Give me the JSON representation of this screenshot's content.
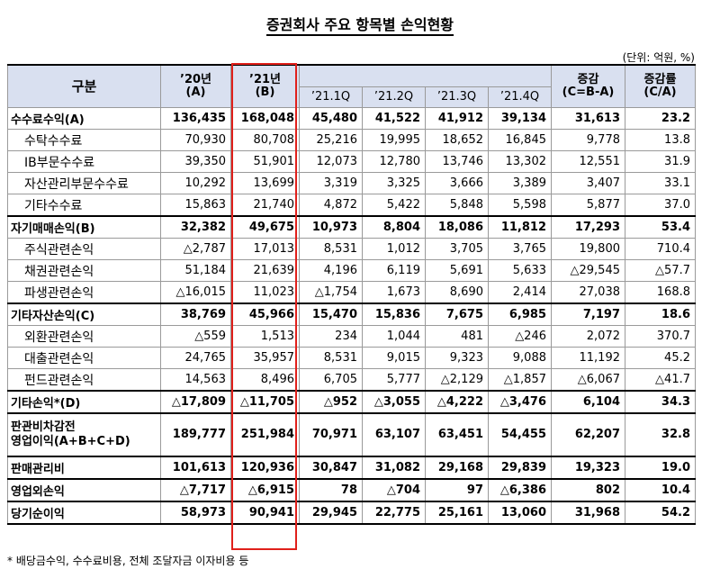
{
  "title": "증권회사 주요 항목별 손익현황",
  "unit": "(단위: 억원, %)",
  "header": {
    "category": "구분",
    "y20": [
      "’20년",
      "(A)"
    ],
    "y21": [
      "’21년",
      "(B)"
    ],
    "q1": "’21.1Q",
    "q2": "’21.2Q",
    "q3": "’21.3Q",
    "q4": "’21.4Q",
    "diff": [
      "증감",
      "(C=B-A)"
    ],
    "rate": [
      "증감률",
      "(C/A)"
    ]
  },
  "rows": [
    {
      "label": "수수료수익(A)",
      "y20": "136,435",
      "y21": "168,048",
      "q1": "45,480",
      "q2": "41,522",
      "q3": "41,912",
      "q4": "39,134",
      "diff": "31,613",
      "rate": "23.2"
    },
    {
      "label": "수탁수수료",
      "y20": "70,930",
      "y21": "80,708",
      "q1": "25,216",
      "q2": "19,995",
      "q3": "18,652",
      "q4": "16,845",
      "diff": "9,778",
      "rate": "13.8"
    },
    {
      "label": "IB부문수수료",
      "y20": "39,350",
      "y21": "51,901",
      "q1": "12,073",
      "q2": "12,780",
      "q3": "13,746",
      "q4": "13,302",
      "diff": "12,551",
      "rate": "31.9"
    },
    {
      "label": "자산관리부문수수료",
      "y20": "10,292",
      "y21": "13,699",
      "q1": "3,319",
      "q2": "3,325",
      "q3": "3,666",
      "q4": "3,389",
      "diff": "3,407",
      "rate": "33.1"
    },
    {
      "label": "기타수수료",
      "y20": "15,863",
      "y21": "21,740",
      "q1": "4,872",
      "q2": "5,422",
      "q3": "5,848",
      "q4": "5,598",
      "diff": "5,877",
      "rate": "37.0"
    },
    {
      "label": "자기매매손익(B)",
      "y20": "32,382",
      "y21": "49,675",
      "q1": "10,973",
      "q2": "8,804",
      "q3": "18,086",
      "q4": "11,812",
      "diff": "17,293",
      "rate": "53.4"
    },
    {
      "label": "주식관련손익",
      "y20": "△2,787",
      "y21": "17,013",
      "q1": "8,531",
      "q2": "1,012",
      "q3": "3,705",
      "q4": "3,765",
      "diff": "19,800",
      "rate": "710.4"
    },
    {
      "label": "채권관련손익",
      "y20": "51,184",
      "y21": "21,639",
      "q1": "4,196",
      "q2": "6,119",
      "q3": "5,691",
      "q4": "5,633",
      "diff": "△29,545",
      "rate": "△57.7"
    },
    {
      "label": "파생관련손익",
      "y20": "△16,015",
      "y21": "11,023",
      "q1": "△1,754",
      "q2": "1,673",
      "q3": "8,690",
      "q4": "2,414",
      "diff": "27,038",
      "rate": "168.8"
    },
    {
      "label": "기타자산손익(C)",
      "y20": "38,769",
      "y21": "45,966",
      "q1": "15,470",
      "q2": "15,836",
      "q3": "7,675",
      "q4": "6,985",
      "diff": "7,197",
      "rate": "18.6"
    },
    {
      "label": "외환관련손익",
      "y20": "△559",
      "y21": "1,513",
      "q1": "234",
      "q2": "1,044",
      "q3": "481",
      "q4": "△246",
      "diff": "2,072",
      "rate": "370.7"
    },
    {
      "label": "대출관련손익",
      "y20": "24,765",
      "y21": "35,957",
      "q1": "8,531",
      "q2": "9,015",
      "q3": "9,323",
      "q4": "9,088",
      "diff": "11,192",
      "rate": "45.2"
    },
    {
      "label": "펀드관련손익",
      "y20": "14,563",
      "y21": "8,496",
      "q1": "6,705",
      "q2": "5,777",
      "q3": "△2,129",
      "q4": "△1,857",
      "diff": "△6,067",
      "rate": "△41.7"
    },
    {
      "label": "기타손익*(D)",
      "y20": "△17,809",
      "y21": "△11,705",
      "q1": "△952",
      "q2": "△3,055",
      "q3": "△4,222",
      "q4": "△3,476",
      "diff": "6,104",
      "rate": "34.3"
    },
    {
      "label": [
        "판관비차감전",
        "영업이익(A+B+C+D)"
      ],
      "y20": "189,777",
      "y21": "251,984",
      "q1": "70,971",
      "q2": "63,107",
      "q3": "63,451",
      "q4": "54,455",
      "diff": "62,207",
      "rate": "32.8"
    },
    {
      "label": "판매관리비",
      "y20": "101,613",
      "y21": "120,936",
      "q1": "30,847",
      "q2": "31,082",
      "q3": "29,168",
      "q4": "29,839",
      "diff": "19,323",
      "rate": "19.0"
    },
    {
      "label": "영업외손익",
      "y20": "△7,717",
      "y21": "△6,915",
      "q1": "78",
      "q2": "△704",
      "q3": "97",
      "q4": "△6,386",
      "diff": "802",
      "rate": "10.4"
    },
    {
      "label": "당기순이익",
      "y20": "58,973",
      "y21": "90,941",
      "q1": "29,945",
      "q2": "22,775",
      "q3": "25,161",
      "q4": "13,060",
      "diff": "31,968",
      "rate": "54.2"
    }
  ],
  "footnote": "* 배당금수익, 수수료비용, 전체 조달자금 이자비용 등",
  "colors": {
    "header_bg": "#d9e0f0",
    "highlight": "#e0201b"
  }
}
